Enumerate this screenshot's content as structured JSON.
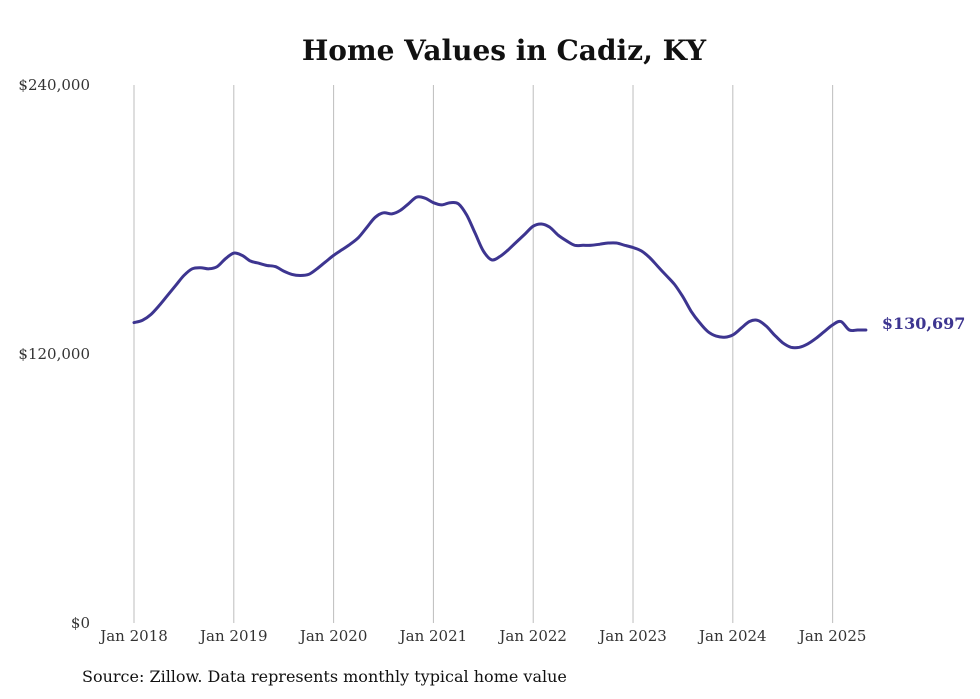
{
  "chart_data": {
    "type": "line",
    "title": "Home Values in Cadiz, KY",
    "xlabel": "",
    "ylabel": "",
    "ylim": [
      0,
      240000
    ],
    "yticks": [
      {
        "value": 0,
        "label": "$0"
      },
      {
        "value": 120000,
        "label": "$120,000"
      },
      {
        "value": 240000,
        "label": "$240,000"
      }
    ],
    "xticks": [
      "Jan 2018",
      "Jan 2019",
      "Jan 2020",
      "Jan 2021",
      "Jan 2022",
      "Jan 2023",
      "Jan 2024",
      "Jan 2025"
    ],
    "x_start": "2018-01",
    "grid": "vertical",
    "line_color": "#3d3590",
    "series": [
      {
        "end_label": "$130,697",
        "x": [
          "2018-01",
          "2018-02",
          "2018-03",
          "2018-04",
          "2018-05",
          "2018-06",
          "2018-07",
          "2018-08",
          "2018-09",
          "2018-10",
          "2018-11",
          "2018-12",
          "2019-01",
          "2019-02",
          "2019-03",
          "2019-04",
          "2019-05",
          "2019-06",
          "2019-07",
          "2019-08",
          "2019-09",
          "2019-10",
          "2019-11",
          "2019-12",
          "2020-01",
          "2020-02",
          "2020-03",
          "2020-04",
          "2020-05",
          "2020-06",
          "2020-07",
          "2020-08",
          "2020-09",
          "2020-10",
          "2020-11",
          "2020-12",
          "2021-01",
          "2021-02",
          "2021-03",
          "2021-04",
          "2021-05",
          "2021-06",
          "2021-07",
          "2021-08",
          "2021-09",
          "2021-10",
          "2021-11",
          "2021-12",
          "2022-01",
          "2022-02",
          "2022-03",
          "2022-04",
          "2022-05",
          "2022-06",
          "2022-07",
          "2022-08",
          "2022-09",
          "2022-10",
          "2022-11",
          "2022-12",
          "2023-01",
          "2023-02",
          "2023-03",
          "2023-04",
          "2023-05",
          "2023-06",
          "2023-07",
          "2023-08",
          "2023-09",
          "2023-10",
          "2023-11",
          "2023-12",
          "2024-01",
          "2024-02",
          "2024-03",
          "2024-04",
          "2024-05",
          "2024-06",
          "2024-07",
          "2024-08",
          "2024-09",
          "2024-10",
          "2024-11",
          "2024-12",
          "2025-01",
          "2025-02",
          "2025-03",
          "2025-04",
          "2025-05"
        ],
        "values": [
          134000,
          135000,
          137500,
          141500,
          146000,
          150500,
          155000,
          158000,
          158500,
          158000,
          159000,
          162500,
          165000,
          164000,
          161500,
          160500,
          159500,
          159000,
          157000,
          155500,
          155000,
          155500,
          158000,
          161000,
          164000,
          166500,
          169000,
          172000,
          176500,
          181000,
          183000,
          182500,
          184000,
          187000,
          190000,
          189500,
          187500,
          186500,
          187500,
          187000,
          182000,
          174000,
          166000,
          162000,
          163500,
          166500,
          170000,
          173500,
          177000,
          178000,
          176500,
          173000,
          170500,
          168500,
          168500,
          168500,
          169000,
          169500,
          169500,
          168500,
          167500,
          166000,
          163000,
          159000,
          155000,
          151000,
          145500,
          139000,
          134000,
          130000,
          128000,
          127500,
          128500,
          131500,
          134500,
          135000,
          132500,
          128500,
          125000,
          123000,
          123000,
          124500,
          127000,
          130000,
          133000,
          134500,
          130697,
          130697,
          130697
        ]
      }
    ]
  },
  "source_text": "Source: Zillow. Data represents monthly typical home value"
}
